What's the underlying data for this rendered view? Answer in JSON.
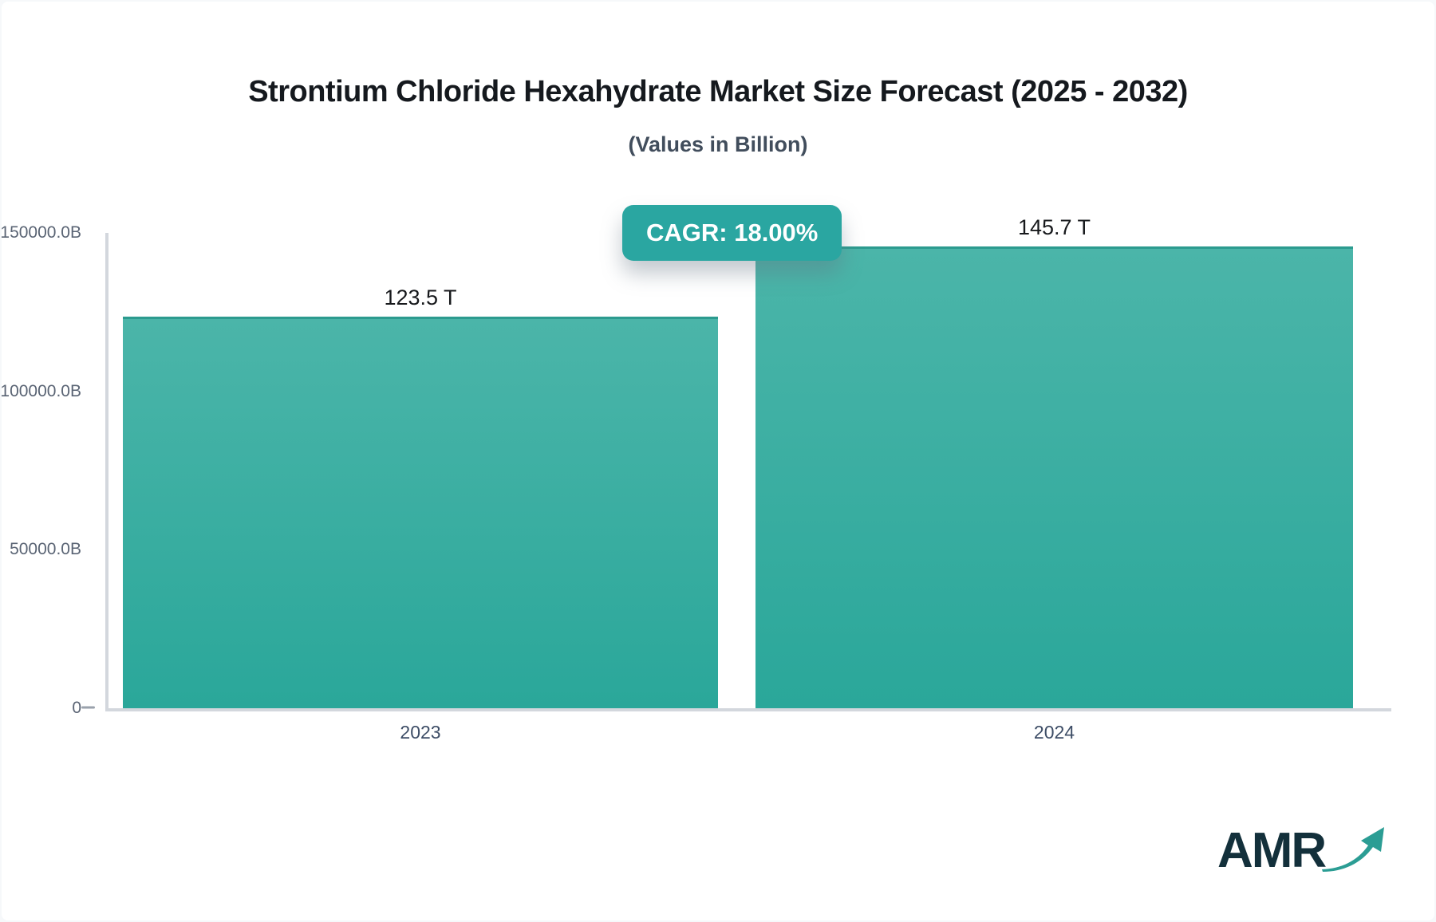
{
  "page": {
    "background": "#f6f8fa",
    "card_background": "#ffffff"
  },
  "header": {
    "title": "Strontium Chloride Hexahydrate Market Size Forecast (2025 - 2032)",
    "subtitle": "(Values in Billion)"
  },
  "badge": {
    "label": "CAGR: 18.00%",
    "background": "#2aa6a1",
    "text_color": "#ffffff"
  },
  "chart_data": {
    "type": "bar",
    "title": "Strontium Chloride Hexahydrate Market Size Forecast (2025 - 2032)",
    "subtitle": "(Values in Billion)",
    "unit": "Billion",
    "categories": [
      "2023",
      "2024"
    ],
    "values": [
      123500,
      145700
    ],
    "value_labels": [
      "123.5 T",
      "145.7 T"
    ],
    "cagr_percent": "18.00%",
    "ylim": [
      0,
      150000
    ],
    "y_ticks": [
      {
        "value": 150000,
        "label": "150000.0B"
      },
      {
        "value": 100000,
        "label": "100000.0B"
      },
      {
        "value": 50000,
        "label": "50000.0B"
      },
      {
        "value": 0,
        "label": "0"
      }
    ],
    "grid": false,
    "legend": "none",
    "bar_color_top": "#4bb5a9",
    "bar_color_bottom": "#2aa79a",
    "bar_border_top_color": "#2c9b8f",
    "axis_color": "#d3d7dd"
  },
  "branding": {
    "logo_text": "AMR",
    "arrow_icon": "trend-up-arrow-icon"
  }
}
